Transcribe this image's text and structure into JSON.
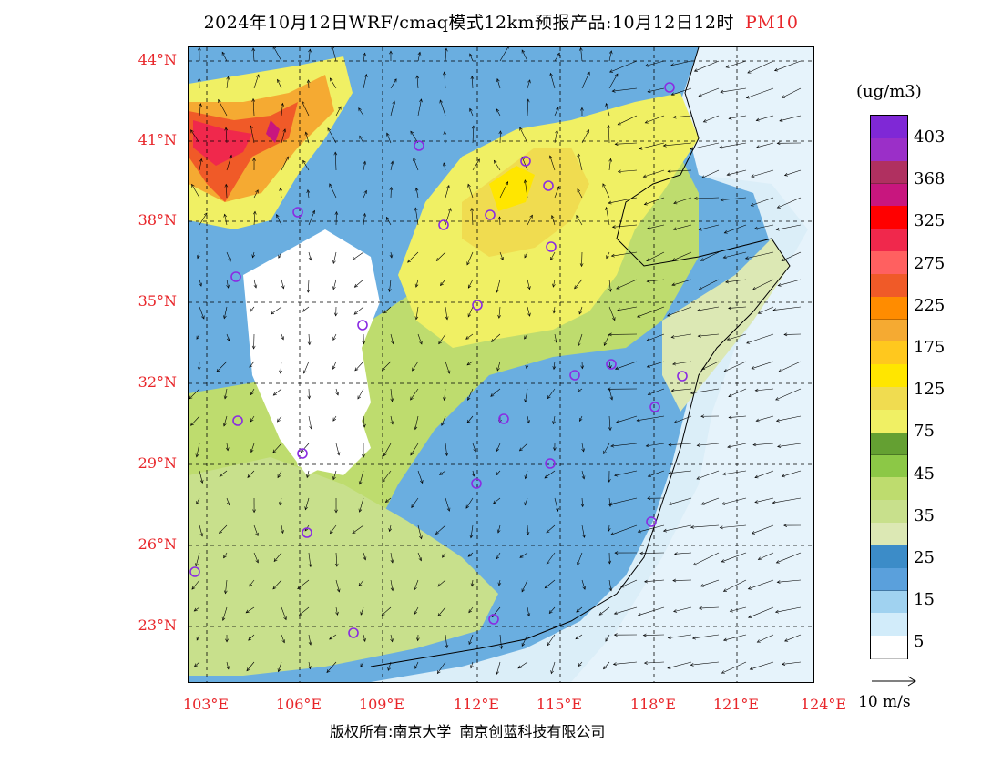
{
  "title": {
    "text": "2024年10月12日WRF/cmaq模式12km预报产品:10月12日12时",
    "pollutant": "PM10"
  },
  "map": {
    "lat_labels": [
      "44°N",
      "41°N",
      "38°N",
      "35°N",
      "32°N",
      "29°N",
      "26°N",
      "23°N"
    ],
    "lon_labels": [
      "103°E",
      "106°E",
      "109°E",
      "112°E",
      "115°E",
      "118°E",
      "121°E",
      "124°E"
    ],
    "extent": {
      "lon": [
        102.8,
        124.0
      ],
      "lat": [
        21.0,
        44.4
      ]
    }
  },
  "colorbar": {
    "unit": "(ug/m3)",
    "labels": [
      "403",
      "368",
      "325",
      "275",
      "225",
      "175",
      "125",
      "75",
      "45",
      "35",
      "25",
      "15",
      "5"
    ],
    "colors_top_to_bottom": [
      "#7f28d6",
      "#9b2fc8",
      "#b03060",
      "#c8167e",
      "#ff0000",
      "#f0284c",
      "#ff6060",
      "#f05a28",
      "#ff8c00",
      "#f5aa32",
      "#ffc81e",
      "#ffe600",
      "#f0dc50",
      "#f0f064",
      "#64a032",
      "#8cc846",
      "#bedc6e",
      "#c8e08c",
      "#dce8b4",
      "#3c8cc8",
      "#5aa0dc",
      "#a0d2f0",
      "#d2ecfa",
      "#ffffff"
    ]
  },
  "reference_vector": {
    "label": "10 m/s"
  },
  "footer": {
    "left": "版权所有:南京大学",
    "right": "南京创蓝科技有限公司"
  },
  "colors": {
    "accent_red": "#e8262a",
    "station_marker": "#8a2be2"
  }
}
